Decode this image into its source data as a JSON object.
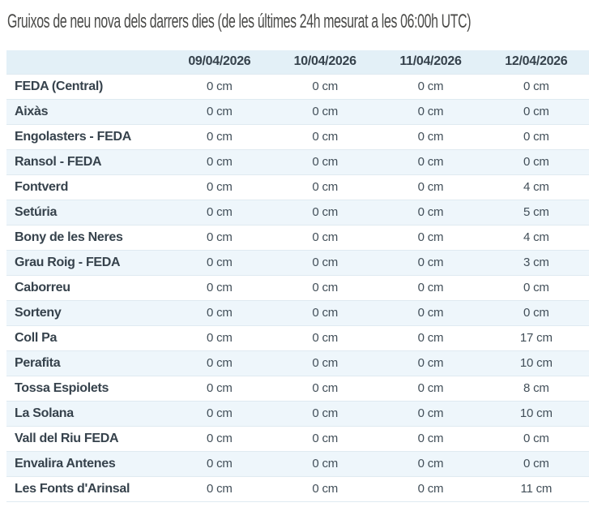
{
  "page": {
    "title": "Gruixos de neu nova dels darrers dies (de les últimes 24h mesurat a les 06:00h UTC)"
  },
  "colors": {
    "header_bg": "#e3f0f7",
    "stripe_bg": "#eef6fb",
    "row_border": "#dfeaf1",
    "heading_text": "#4a4a48",
    "table_text_dark": "#36424c",
    "table_text_value": "#424f59",
    "page_bg": "#ffffff"
  },
  "table": {
    "columns": [
      "",
      "09/04/2026",
      "10/04/2026",
      "11/04/2026",
      "12/04/2026"
    ],
    "rows": [
      {
        "name": "FEDA (Central)",
        "values": [
          "0 cm",
          "0 cm",
          "0 cm",
          "0 cm"
        ]
      },
      {
        "name": "Aixàs",
        "values": [
          "0 cm",
          "0 cm",
          "0 cm",
          "0 cm"
        ]
      },
      {
        "name": "Engolasters - FEDA",
        "values": [
          "0 cm",
          "0 cm",
          "0 cm",
          "0 cm"
        ]
      },
      {
        "name": "Ransol - FEDA",
        "values": [
          "0 cm",
          "0 cm",
          "0 cm",
          "0 cm"
        ]
      },
      {
        "name": "Fontverd",
        "values": [
          "0 cm",
          "0 cm",
          "0 cm",
          "4 cm"
        ]
      },
      {
        "name": "Setúria",
        "values": [
          "0 cm",
          "0 cm",
          "0 cm",
          "5 cm"
        ]
      },
      {
        "name": "Bony de les Neres",
        "values": [
          "0 cm",
          "0 cm",
          "0 cm",
          "4 cm"
        ]
      },
      {
        "name": "Grau Roig - FEDA",
        "values": [
          "0 cm",
          "0 cm",
          "0 cm",
          "3 cm"
        ]
      },
      {
        "name": "Caborreu",
        "values": [
          "0 cm",
          "0 cm",
          "0 cm",
          "0 cm"
        ]
      },
      {
        "name": "Sorteny",
        "values": [
          "0 cm",
          "0 cm",
          "0 cm",
          "0 cm"
        ]
      },
      {
        "name": "Coll Pa",
        "values": [
          "0 cm",
          "0 cm",
          "0 cm",
          "17 cm"
        ]
      },
      {
        "name": "Perafita",
        "values": [
          "0 cm",
          "0 cm",
          "0 cm",
          "10 cm"
        ]
      },
      {
        "name": "Tossa Espiolets",
        "values": [
          "0 cm",
          "0 cm",
          "0 cm",
          "8 cm"
        ]
      },
      {
        "name": "La Solana",
        "values": [
          "0 cm",
          "0 cm",
          "0 cm",
          "10 cm"
        ]
      },
      {
        "name": "Vall del Riu FEDA",
        "values": [
          "0 cm",
          "0 cm",
          "0 cm",
          "0 cm"
        ]
      },
      {
        "name": "Envalira Antenes",
        "values": [
          "0 cm",
          "0 cm",
          "0 cm",
          "0 cm"
        ]
      },
      {
        "name": "Les Fonts d'Arinsal",
        "values": [
          "0 cm",
          "0 cm",
          "0 cm",
          "11 cm"
        ]
      }
    ]
  }
}
